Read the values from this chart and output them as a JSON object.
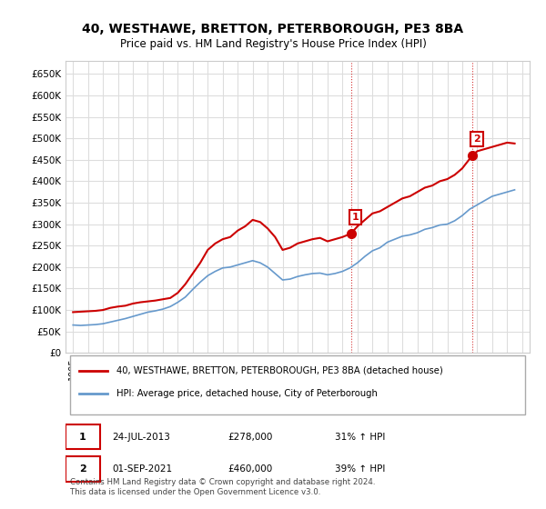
{
  "title": "40, WESTHAWE, BRETTON, PETERBOROUGH, PE3 8BA",
  "subtitle": "Price paid vs. HM Land Registry's House Price Index (HPI)",
  "ylabel": "",
  "ylim": [
    0,
    680000
  ],
  "yticks": [
    0,
    50000,
    100000,
    150000,
    200000,
    250000,
    300000,
    350000,
    400000,
    450000,
    500000,
    550000,
    600000,
    650000
  ],
  "ytick_labels": [
    "£0",
    "£50K",
    "£100K",
    "£150K",
    "£200K",
    "£250K",
    "£300K",
    "£350K",
    "£400K",
    "£450K",
    "£500K",
    "£550K",
    "£600K",
    "£650K"
  ],
  "xlim_start": 1994.5,
  "xlim_end": 2025.5,
  "bg_color": "#ffffff",
  "plot_bg_color": "#ffffff",
  "grid_color": "#dddddd",
  "red_color": "#cc0000",
  "blue_color": "#6699cc",
  "marker_color": "#cc0000",
  "point1_x": 2013.56,
  "point1_y": 278000,
  "point2_x": 2021.67,
  "point2_y": 460000,
  "legend_line1": "40, WESTHAWE, BRETTON, PETERBOROUGH, PE3 8BA (detached house)",
  "legend_line2": "HPI: Average price, detached house, City of Peterborough",
  "annot1_num": "1",
  "annot1_date": "24-JUL-2013",
  "annot1_price": "£278,000",
  "annot1_hpi": "31% ↑ HPI",
  "annot2_num": "2",
  "annot2_date": "01-SEP-2021",
  "annot2_price": "£460,000",
  "annot2_hpi": "39% ↑ HPI",
  "footnote": "Contains HM Land Registry data © Crown copyright and database right 2024.\nThis data is licensed under the Open Government Licence v3.0.",
  "red_x": [
    1995.0,
    1995.5,
    1996.0,
    1996.5,
    1997.0,
    1997.5,
    1998.0,
    1998.5,
    1999.0,
    1999.5,
    2000.0,
    2000.5,
    2001.0,
    2001.5,
    2002.0,
    2002.5,
    2003.0,
    2003.5,
    2004.0,
    2004.5,
    2005.0,
    2005.5,
    2006.0,
    2006.5,
    2007.0,
    2007.5,
    2008.0,
    2008.5,
    2009.0,
    2009.5,
    2010.0,
    2010.5,
    2011.0,
    2011.5,
    2012.0,
    2012.5,
    2013.0,
    2013.56,
    2014.0,
    2014.5,
    2015.0,
    2015.5,
    2016.0,
    2016.5,
    2017.0,
    2017.5,
    2018.0,
    2018.5,
    2019.0,
    2019.5,
    2020.0,
    2020.5,
    2021.0,
    2021.67,
    2022.0,
    2022.5,
    2023.0,
    2023.5,
    2024.0,
    2024.5
  ],
  "red_y": [
    95000,
    96000,
    97000,
    98000,
    100000,
    105000,
    108000,
    110000,
    115000,
    118000,
    120000,
    122000,
    125000,
    128000,
    140000,
    160000,
    185000,
    210000,
    240000,
    255000,
    265000,
    270000,
    285000,
    295000,
    310000,
    305000,
    290000,
    270000,
    240000,
    245000,
    255000,
    260000,
    265000,
    268000,
    260000,
    265000,
    270000,
    278000,
    295000,
    310000,
    325000,
    330000,
    340000,
    350000,
    360000,
    365000,
    375000,
    385000,
    390000,
    400000,
    405000,
    415000,
    430000,
    460000,
    470000,
    475000,
    480000,
    485000,
    490000,
    488000
  ],
  "blue_x": [
    1995.0,
    1995.5,
    1996.0,
    1996.5,
    1997.0,
    1997.5,
    1998.0,
    1998.5,
    1999.0,
    1999.5,
    2000.0,
    2000.5,
    2001.0,
    2001.5,
    2002.0,
    2002.5,
    2003.0,
    2003.5,
    2004.0,
    2004.5,
    2005.0,
    2005.5,
    2006.0,
    2006.5,
    2007.0,
    2007.5,
    2008.0,
    2008.5,
    2009.0,
    2009.5,
    2010.0,
    2010.5,
    2011.0,
    2011.5,
    2012.0,
    2012.5,
    2013.0,
    2013.5,
    2014.0,
    2014.5,
    2015.0,
    2015.5,
    2016.0,
    2016.5,
    2017.0,
    2017.5,
    2018.0,
    2018.5,
    2019.0,
    2019.5,
    2020.0,
    2020.5,
    2021.0,
    2021.5,
    2022.0,
    2022.5,
    2023.0,
    2023.5,
    2024.0,
    2024.5
  ],
  "blue_y": [
    65000,
    64000,
    65000,
    66000,
    68000,
    72000,
    76000,
    80000,
    85000,
    90000,
    95000,
    98000,
    102000,
    108000,
    118000,
    130000,
    148000,
    165000,
    180000,
    190000,
    198000,
    200000,
    205000,
    210000,
    215000,
    210000,
    200000,
    185000,
    170000,
    172000,
    178000,
    182000,
    185000,
    186000,
    182000,
    185000,
    190000,
    198000,
    210000,
    225000,
    238000,
    245000,
    258000,
    265000,
    272000,
    275000,
    280000,
    288000,
    292000,
    298000,
    300000,
    308000,
    320000,
    335000,
    345000,
    355000,
    365000,
    370000,
    375000,
    380000
  ]
}
